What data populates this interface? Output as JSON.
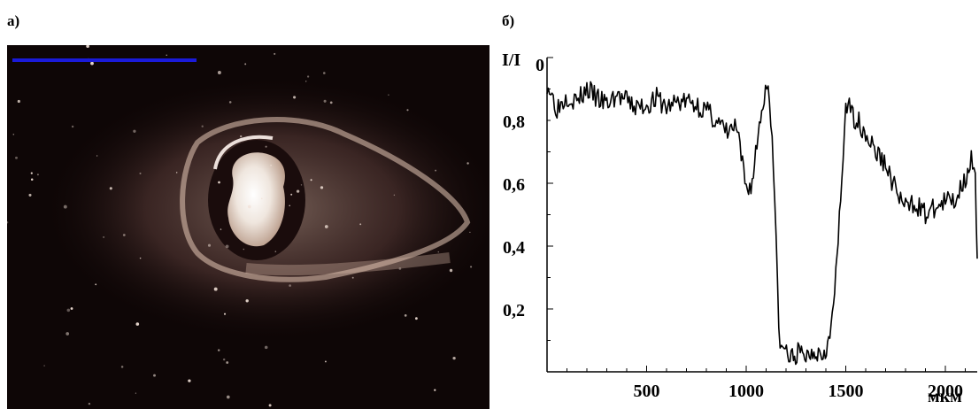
{
  "panels": {
    "left_label": "а)",
    "right_label": "б)"
  },
  "colors": {
    "scale_bar": "#1a1ad9",
    "photo_background": "#0e0606",
    "halo": "#e6c8b6",
    "line": "#000000"
  },
  "chart_data": {
    "type": "line",
    "title": "",
    "ylabel": "I/I",
    "ylabel_subscript": "0",
    "xlabel": "мкм",
    "xlim": [
      0,
      2160
    ],
    "ylim": [
      0,
      1.0
    ],
    "xticks": [
      {
        "value": 500,
        "label": "500"
      },
      {
        "value": 1000,
        "label": "1000"
      },
      {
        "value": 1500,
        "label": "1500"
      },
      {
        "value": 2000,
        "label": "2000"
      }
    ],
    "yticks": [
      {
        "value": 0.2,
        "label": "0,2"
      },
      {
        "value": 0.4,
        "label": "0,4"
      },
      {
        "value": 0.6,
        "label": "0,6"
      },
      {
        "value": 0.8,
        "label": "0,8"
      }
    ],
    "grid": false,
    "legend": "none",
    "series": [
      {
        "x": [
          0,
          50,
          100,
          150,
          200,
          250,
          300,
          350,
          400,
          450,
          500,
          550,
          600,
          650,
          700,
          750,
          800,
          850,
          900,
          950,
          1000,
          1030,
          1060,
          1090,
          1110,
          1130,
          1150,
          1170,
          1190,
          1220,
          1260,
          1300,
          1340,
          1380,
          1420,
          1450,
          1480,
          1500,
          1530,
          1560,
          1600,
          1650,
          1700,
          1750,
          1800,
          1850,
          1900,
          1950,
          2000,
          2050,
          2100,
          2130,
          2150,
          2160
        ],
        "y": [
          0.92,
          0.84,
          0.88,
          0.86,
          0.9,
          0.87,
          0.85,
          0.88,
          0.86,
          0.84,
          0.85,
          0.87,
          0.84,
          0.86,
          0.86,
          0.85,
          0.83,
          0.8,
          0.76,
          0.78,
          0.58,
          0.6,
          0.76,
          0.88,
          0.92,
          0.76,
          0.4,
          0.06,
          0.08,
          0.04,
          0.06,
          0.05,
          0.07,
          0.06,
          0.1,
          0.3,
          0.6,
          0.86,
          0.82,
          0.8,
          0.76,
          0.7,
          0.66,
          0.58,
          0.52,
          0.54,
          0.5,
          0.52,
          0.54,
          0.55,
          0.62,
          0.68,
          0.6,
          0.36
        ]
      }
    ]
  }
}
